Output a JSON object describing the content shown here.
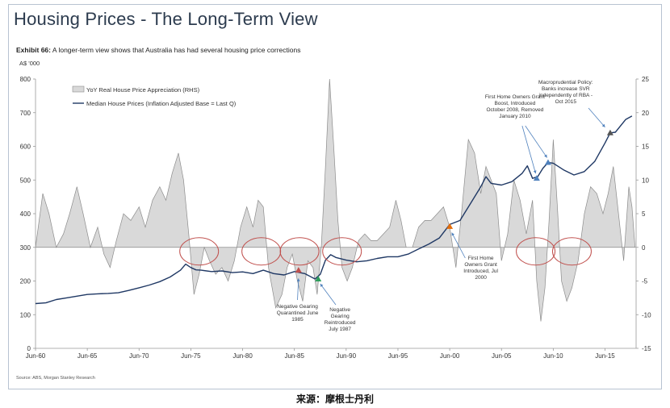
{
  "header": {
    "title": "Housing Prices - The Long-Term View",
    "exhibit_label": "Exhibit 66:",
    "exhibit_text": "A longer-term view shows that Australia has had several housing price corrections",
    "unit_label": "A$ '000",
    "source": "Source: ABS, Morgan Stanley Research",
    "caption": "来源：摩根士丹利"
  },
  "colors": {
    "price_line": "#1f3864",
    "area_fill": "#d9d9d9",
    "area_stroke": "#8c8c8c",
    "circle": "#c0504d",
    "arrow": "#4f81bd",
    "marker_red": "#c0504d",
    "marker_green": "#2e9e5b",
    "marker_blue": "#4f81bd",
    "marker_orange": "#e46c0a",
    "marker_dark": "#555555"
  },
  "chart_data": {
    "type": "line",
    "title": "Housing Prices - The Long-Term View",
    "xlabel": "",
    "ylabel": "A$ '000",
    "ylim": [
      0,
      800
    ],
    "y2lim": [
      -15,
      25
    ],
    "xlim": [
      1960,
      2018
    ],
    "x_tick_labels": [
      "Jun-60",
      "Jun-65",
      "Jun-70",
      "Jun-75",
      "Jun-80",
      "Jun-85",
      "Jun-90",
      "Jun-95",
      "Jun-00",
      "Jun-05",
      "Jun-10",
      "Jun-15"
    ],
    "x_tick_years": [
      1960,
      1965,
      1970,
      1975,
      1980,
      1985,
      1990,
      1995,
      2000,
      2005,
      2010,
      2015
    ],
    "y_ticks": [
      0,
      100,
      200,
      300,
      400,
      500,
      600,
      700,
      800
    ],
    "y2_ticks": [
      -15,
      -10,
      -5,
      0,
      5,
      10,
      15,
      20,
      25
    ],
    "legend": [
      "YoY Real House Price Appreciation (RHS)",
      "Median House Prices (Inflation Adjusted Base = Last Q)"
    ],
    "legend_position": "top-left",
    "series": [
      {
        "name": "Median House Prices (Inflation Adjusted Base = Last Q)",
        "axis": "left",
        "x": [
          1960,
          1961,
          1962,
          1963,
          1964,
          1965,
          1966,
          1967,
          1968,
          1969,
          1970,
          1971,
          1972,
          1973,
          1974,
          1974.5,
          1975,
          1975.5,
          1976,
          1977,
          1978,
          1979,
          1980,
          1981,
          1982,
          1983,
          1984,
          1985,
          1986,
          1987,
          1987.5,
          1988,
          1988.5,
          1989,
          1990,
          1991,
          1992,
          1993,
          1994,
          1995,
          1996,
          1997,
          1998,
          1999,
          2000,
          2001,
          2002,
          2003,
          2003.5,
          2004,
          2005,
          2006,
          2007,
          2007.5,
          2008,
          2008.5,
          2009,
          2009.5,
          2010,
          2011,
          2012,
          2013,
          2014,
          2015,
          2015.5,
          2016,
          2017,
          2017.6
        ],
        "values": [
          133,
          135,
          145,
          150,
          155,
          160,
          162,
          163,
          165,
          172,
          180,
          188,
          198,
          212,
          232,
          250,
          240,
          233,
          232,
          228,
          230,
          225,
          227,
          222,
          232,
          222,
          218,
          228,
          222,
          206,
          220,
          262,
          278,
          270,
          262,
          257,
          260,
          267,
          272,
          272,
          280,
          295,
          310,
          328,
          368,
          380,
          430,
          480,
          510,
          490,
          485,
          495,
          520,
          542,
          505,
          510,
          535,
          552,
          550,
          530,
          515,
          525,
          555,
          610,
          640,
          642,
          680,
          690
        ]
      },
      {
        "name": "YoY Real House Price Appreciation (RHS)",
        "axis": "right",
        "x": [
          1960,
          1960.7,
          1961.3,
          1962,
          1962.7,
          1963.3,
          1964,
          1964.6,
          1965.3,
          1966,
          1966.6,
          1967.2,
          1967.8,
          1968.5,
          1969.2,
          1970,
          1970.6,
          1971.3,
          1972,
          1972.6,
          1973.2,
          1973.8,
          1974.3,
          1974.8,
          1975.3,
          1975.8,
          1976.3,
          1976.8,
          1977.4,
          1978,
          1978.6,
          1979.2,
          1979.8,
          1980.4,
          1981,
          1981.5,
          1982,
          1982.5,
          1983.2,
          1983.8,
          1984.3,
          1984.8,
          1985.3,
          1985.8,
          1986.3,
          1986.8,
          1987.2,
          1987.6,
          1988,
          1988.4,
          1988.8,
          1989.2,
          1989.6,
          1990.1,
          1990.6,
          1991.2,
          1991.8,
          1992.4,
          1993,
          1993.6,
          1994.2,
          1994.8,
          1995.3,
          1995.8,
          1996.4,
          1997,
          1997.6,
          1998.2,
          1998.8,
          1999.4,
          2000,
          2000.6,
          2001.2,
          2001.8,
          2002.4,
          2003,
          2003.5,
          2004,
          2004.5,
          2005,
          2005.6,
          2006.2,
          2006.8,
          2007.4,
          2008,
          2008.4,
          2008.8,
          2009.2,
          2009.6,
          2010,
          2010.4,
          2010.8,
          2011.3,
          2011.8,
          2012.4,
          2013,
          2013.6,
          2014.2,
          2014.8,
          2015.3,
          2015.8,
          2016.3,
          2016.8,
          2017.3,
          2017.6,
          2017.9
        ],
        "values": [
          0,
          8,
          5,
          0,
          2,
          5,
          9,
          5,
          0,
          3,
          -1,
          -3,
          1,
          5,
          4,
          6,
          3,
          7,
          9,
          7,
          11,
          14,
          10,
          2,
          -7,
          -4,
          0,
          -2,
          -4,
          -3,
          -5,
          -2,
          3,
          6,
          3,
          7,
          6,
          -3,
          -9,
          -7,
          -3,
          -1,
          -5,
          -8,
          -2,
          -3,
          -7,
          0,
          12,
          25,
          15,
          4,
          -3,
          -5,
          -3,
          1,
          2,
          1,
          1,
          2,
          3,
          7,
          4,
          0,
          0,
          3,
          4,
          4,
          5,
          6,
          3,
          -3,
          6,
          16,
          14,
          8,
          12,
          10,
          8,
          -2,
          2,
          10,
          7,
          2,
          7,
          -5,
          -11,
          -6,
          4,
          16,
          6,
          -5,
          -8,
          -6,
          -2,
          5,
          9,
          8,
          5,
          8,
          12,
          5,
          -2,
          9,
          6,
          0
        ]
      }
    ],
    "annotations": [
      {
        "text": [
          "Negative Gearing",
          "Quarantined June",
          "1985"
        ],
        "x": 1985.4,
        "type": "red-triangle"
      },
      {
        "text": [
          "Negative",
          "Gearing",
          "Reintroduced",
          "July 1987"
        ],
        "x": 1987.3,
        "type": "green-triangle"
      },
      {
        "text": [
          "First Home",
          "Owners Grant",
          "Introduced, Jul",
          "2000"
        ],
        "x": 2000.0,
        "type": "orange-triangle"
      },
      {
        "text": [
          "First Home Owners Grant",
          "Boost, Introduced",
          "October 2008, Removed",
          "January 2010"
        ],
        "x": 2009.0,
        "type": "blue-triangle"
      },
      {
        "text": [
          "Macroprudential Policy:",
          "Banks increase SVR",
          "independently of RBA -",
          "Oct 2015"
        ],
        "x": 2015.8,
        "type": "dark-triangle"
      }
    ],
    "highlighted_corrections": [
      1975.8,
      1981.8,
      1985.5,
      1989.6,
      2008.3,
      2011.8
    ]
  }
}
